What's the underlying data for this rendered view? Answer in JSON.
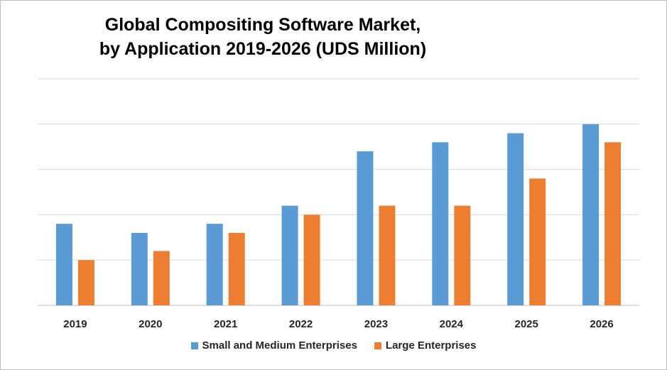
{
  "chart_data": {
    "type": "bar",
    "title": "Global Compositing Software Market,",
    "subtitle": "by Application 2019-2026 (UDS Million)",
    "categories": [
      "2019",
      "2020",
      "2021",
      "2022",
      "2023",
      "2024",
      "2025",
      "2026"
    ],
    "series": [
      {
        "name": "Small and Medium Enterprises",
        "color": "#5B9BD5",
        "values": [
          90,
          80,
          90,
          110,
          170,
          180,
          190,
          200
        ]
      },
      {
        "name": "Large Enterprises",
        "color": "#ED7D31",
        "values": [
          50,
          60,
          80,
          100,
          110,
          110,
          140,
          180
        ]
      }
    ],
    "ylim": [
      0,
      250
    ],
    "y_gridlines": [
      0,
      50,
      100,
      150,
      200,
      250
    ],
    "y_tick_labels_shown": false,
    "grid": true,
    "legend_position": "bottom"
  }
}
